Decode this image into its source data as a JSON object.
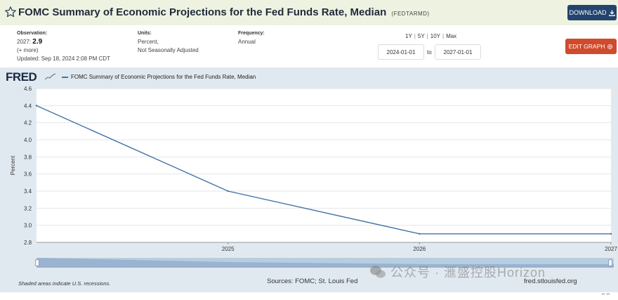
{
  "header": {
    "title": "FOMC Summary of Economic Projections for the Fed Funds Rate, Median",
    "series_id": "(FEDTARMD)",
    "download_label": "DOWNLOAD",
    "star_icon": "star-outline-icon",
    "download_icon": "download-icon"
  },
  "meta": {
    "observation_label": "Observation:",
    "observation_period": "2027:",
    "observation_value": "2.9",
    "more_label": "(+ more)",
    "updated": "Updated: Sep 18, 2024 2:08 PM CDT",
    "units_label": "Units:",
    "units_line1": "Percent,",
    "units_line2": "Not Seasonally Adjusted",
    "frequency_label": "Frequency:",
    "frequency_value": "Annual"
  },
  "controls": {
    "range_1y": "1Y",
    "range_5y": "5Y",
    "range_10y": "10Y",
    "range_max": "Max",
    "separator": "|",
    "start_date": "2024-01-01",
    "to_label": "to",
    "end_date": "2027-01-01",
    "edit_label": "EDIT GRAPH",
    "edit_icon": "gear-icon"
  },
  "chart_panel": {
    "logo_text": "FRED",
    "recession_note": "Shaded areas indicate U.S. recessions.",
    "source": "Sources: FOMC; St. Louis Fed",
    "url": "fred.stlouisfed.org",
    "watermark": "公众号 · 滙盛控股Horizon",
    "resize_glyph": "⠒⠒"
  },
  "chart_data": {
    "type": "line",
    "title": "",
    "xlabel": "",
    "ylabel": "Percent",
    "series": [
      {
        "name": "FOMC Summary of Economic Projections for the Fed Funds Rate, Median",
        "color": "#4572a7",
        "points": [
          {
            "x": "2024",
            "y": 4.4
          },
          {
            "x": "2025",
            "y": 3.4
          },
          {
            "x": "2026",
            "y": 2.9
          },
          {
            "x": "2027",
            "y": 2.9
          }
        ]
      }
    ],
    "x_ticks": [
      "2025",
      "2026",
      "2027"
    ],
    "y_ticks": [
      "2.8",
      "3.0",
      "3.2",
      "3.4",
      "3.6",
      "3.8",
      "4.0",
      "4.2",
      "4.4",
      "4.6"
    ],
    "ylim": [
      2.8,
      4.6
    ],
    "xlim": [
      "2024",
      "2027"
    ],
    "grid": true,
    "legend_position": "top-left",
    "background": "#e1e9f0",
    "plot_background": "#ffffff"
  }
}
